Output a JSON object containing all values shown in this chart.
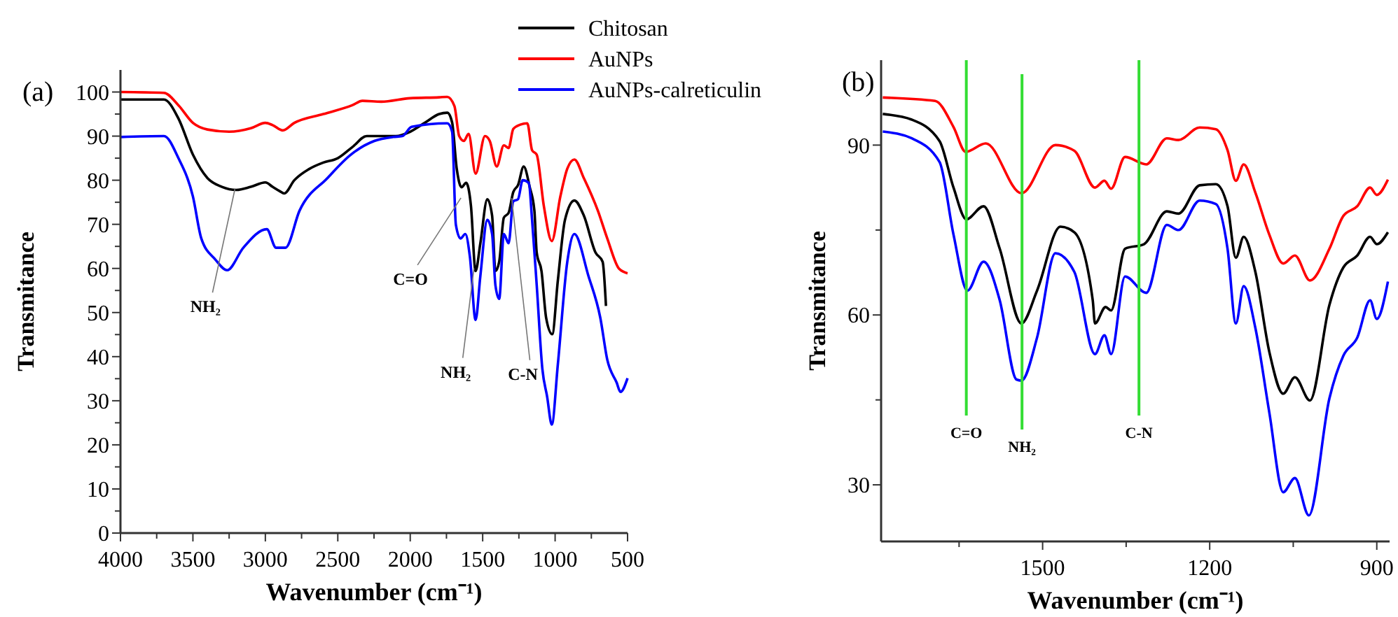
{
  "chart_data": [
    {
      "type": "line",
      "title": "(a)",
      "xlabel": "Wavenumber (cm⁻¹)",
      "ylabel": "Transmitance",
      "legend": "top right",
      "grid": false,
      "xlim": [
        4000,
        500
      ],
      "ylim": [
        0,
        105
      ],
      "xticks": [
        4000,
        {
          "value": 3750,
          "label": null
        },
        3500,
        {
          "value": 3250,
          "label": null
        },
        3000,
        {
          "value": 2750,
          "label": null
        },
        2500,
        {
          "value": 2250,
          "label": null
        },
        2000,
        {
          "value": 1750,
          "label": null
        },
        1500,
        {
          "value": 1250,
          "label": null
        },
        1000,
        {
          "value": 750,
          "label": null
        },
        500
      ],
      "yticks": [
        0,
        {
          "value": 5,
          "label": null
        },
        10,
        {
          "value": 15,
          "label": null
        },
        20,
        {
          "value": 25,
          "label": null
        },
        30,
        {
          "value": 35,
          "label": null
        },
        40,
        {
          "value": 45,
          "label": null
        },
        50,
        {
          "value": 55,
          "label": null
        },
        60,
        {
          "value": 65,
          "label": null
        },
        70,
        {
          "value": 75,
          "label": null
        },
        80,
        {
          "value": 85,
          "label": null
        },
        90,
        {
          "value": 95,
          "label": null
        },
        100
      ],
      "series": [
        {
          "name": "Chitosan",
          "color": "#000000",
          "x": [
            4000,
            3700,
            3600,
            3500,
            3400,
            3300,
            3200,
            3100,
            3000,
            2950,
            2900,
            2870,
            2800,
            2700,
            2600,
            2500,
            2400,
            2300,
            2100,
            2000,
            1900,
            1800,
            1744,
            1711,
            1679,
            1646,
            1614,
            1581,
            1549,
            1516,
            1468,
            1435,
            1412,
            1386,
            1354,
            1321,
            1289,
            1256,
            1217,
            1175,
            1143,
            1127,
            1094,
            1062,
            1020,
            981,
            932,
            867,
            802,
            721,
            672,
            649
          ],
          "values": [
            98.3,
            98.3,
            94,
            85.8,
            80.5,
            78.5,
            77.8,
            78.5,
            79.5,
            78.5,
            77.5,
            77,
            80,
            82.5,
            84,
            85,
            87.5,
            90,
            90,
            91,
            93,
            95,
            95.3,
            93.1,
            82.6,
            78.4,
            79.4,
            74.2,
            59.4,
            65.7,
            75.7,
            72,
            59.4,
            61.5,
            71.5,
            72.6,
            77.3,
            78.9,
            83.1,
            78.4,
            73.1,
            63.6,
            59.4,
            48.8,
            45.1,
            57.3,
            71,
            75.4,
            72,
            63.6,
            61.5,
            51.5
          ]
        },
        {
          "name": "AuNPs",
          "color": "#ff0000",
          "x": [
            4000,
            3700,
            3600,
            3500,
            3400,
            3250,
            3100,
            3000,
            2950,
            2880,
            2800,
            2600,
            2400,
            2330,
            2200,
            2000,
            1800,
            1744,
            1695,
            1662,
            1630,
            1597,
            1549,
            1484,
            1451,
            1403,
            1354,
            1321,
            1289,
            1240,
            1192,
            1159,
            1127,
            1078,
            1023,
            964,
            916,
            867,
            802,
            705,
            640,
            558,
            500
          ],
          "values": [
            100,
            99.8,
            97,
            93,
            91.5,
            91,
            91.8,
            93,
            92.5,
            91.3,
            93,
            95,
            97,
            98,
            97.8,
            98.6,
            98.8,
            98.9,
            96.8,
            90,
            88.9,
            90.5,
            81.5,
            90,
            88.9,
            83.1,
            87.9,
            87.3,
            91.6,
            92.6,
            92.9,
            86.8,
            85.8,
            74.2,
            66.2,
            76.3,
            82.6,
            84.7,
            80.5,
            73.1,
            66.8,
            59.9,
            58.9
          ]
        },
        {
          "name": "AuNPs-calreticulin",
          "color": "#0000ff",
          "x": [
            4000,
            3700,
            3600,
            3500,
            3442,
            3345,
            3264,
            3152,
            2990,
            2926,
            2861,
            2764,
            2571,
            2410,
            2248,
            2119,
            2055,
            1990,
            1744,
            1711,
            1685,
            1653,
            1620,
            1588,
            1549,
            1516,
            1468,
            1435,
            1412,
            1386,
            1354,
            1321,
            1289,
            1256,
            1224,
            1182,
            1159,
            1127,
            1088,
            1055,
            1023,
            981,
            916,
            867,
            770,
            688,
            640,
            575,
            549,
            500
          ],
          "values": [
            89.8,
            90,
            85,
            76.3,
            66.8,
            62,
            59.6,
            64.7,
            68.9,
            64.7,
            64.7,
            73.1,
            80.5,
            85.8,
            88.9,
            89.8,
            90,
            92.1,
            92.9,
            91,
            69.9,
            66.8,
            67.8,
            62.6,
            48.3,
            58.3,
            71,
            67.8,
            56.2,
            53.1,
            67.8,
            65.7,
            75.2,
            75.7,
            80,
            79.4,
            71,
            56.2,
            37.2,
            30.9,
            24.6,
            38.3,
            61.5,
            67.8,
            58.3,
            48.8,
            39.3,
            34.1,
            32,
            35.1
          ]
        }
      ],
      "annotations": [
        {
          "text": "NH₂",
          "x": 3210,
          "y": 78
        },
        {
          "text": "C=O",
          "x": 1650,
          "y": 76
        },
        {
          "text": "NH₂",
          "x": 1560,
          "y": 60
        },
        {
          "text": "C-N",
          "x": 1300,
          "y": 76
        }
      ]
    },
    {
      "type": "line",
      "title": "(b)",
      "xlabel": "Wavenumber (cm⁻¹)",
      "ylabel": "Transmitance",
      "legend": false,
      "grid": false,
      "xlim": [
        1790,
        877
      ],
      "ylim": [
        20,
        105
      ],
      "xticks": [
        {
          "value": 1650,
          "label": null
        },
        1500,
        {
          "value": 1350,
          "label": null
        },
        1200,
        {
          "value": 1050,
          "label": null
        },
        900
      ],
      "yticks": [
        30,
        {
          "value": 45,
          "label": null
        },
        60,
        {
          "value": 75,
          "label": null
        },
        90
      ],
      "series": [
        {
          "color": "#000000",
          "x": [
            1787,
            1735,
            1685,
            1660,
            1637,
            1606,
            1577,
            1538,
            1510,
            1468,
            1443,
            1410,
            1406,
            1387,
            1377,
            1352,
            1318,
            1277,
            1256,
            1218,
            1189,
            1168,
            1153,
            1139,
            1118,
            1093,
            1068,
            1047,
            1020,
            985,
            960,
            935,
            912,
            900,
            880
          ],
          "values": [
            95.5,
            94.5,
            90.7,
            82.5,
            76.9,
            79.2,
            71.7,
            58.5,
            64.3,
            75.6,
            74.6,
            62.6,
            58.5,
            61.4,
            60.8,
            71.7,
            72.5,
            78.3,
            77.9,
            82.9,
            83.1,
            79.2,
            70.1,
            73.8,
            67.6,
            53.5,
            46.1,
            49,
            44.9,
            61.8,
            68.4,
            70.5,
            73.8,
            72.5,
            74.6
          ]
        },
        {
          "color": "#ff0000",
          "x": [
            1787,
            1693,
            1660,
            1638,
            1602,
            1538,
            1477,
            1443,
            1406,
            1389,
            1377,
            1352,
            1314,
            1277,
            1256,
            1218,
            1189,
            1168,
            1153,
            1139,
            1118,
            1093,
            1068,
            1047,
            1020,
            985,
            960,
            935,
            912,
            900,
            880
          ],
          "values": [
            98.4,
            97.8,
            93.2,
            88.8,
            90.3,
            81.5,
            90,
            89,
            82.5,
            83.7,
            82.3,
            87.9,
            86.6,
            91.2,
            90.9,
            93.1,
            92.8,
            89.1,
            83.7,
            86.6,
            81.6,
            74.2,
            69.1,
            70.5,
            66.1,
            71.7,
            77.5,
            79.2,
            82.5,
            81.2,
            83.9
          ]
        },
        {
          "color": "#0000ff",
          "x": [
            1787,
            1735,
            1685,
            1660,
            1635,
            1606,
            1577,
            1547,
            1538,
            1510,
            1477,
            1443,
            1406,
            1389,
            1377,
            1352,
            1314,
            1277,
            1256,
            1218,
            1189,
            1168,
            1153,
            1139,
            1118,
            1093,
            1068,
            1047,
            1022,
            985,
            960,
            935,
            912,
            900,
            880
          ],
          "values": [
            92.4,
            91.2,
            87,
            74.2,
            64.3,
            69.4,
            62.6,
            48.6,
            48.4,
            56,
            70.9,
            67.6,
            53.1,
            56.4,
            53.1,
            66.8,
            63.9,
            75.9,
            75,
            80.2,
            79.6,
            71.7,
            58.5,
            65.1,
            57.7,
            42.8,
            28.7,
            31.2,
            24.6,
            45.3,
            52.8,
            56,
            62.6,
            59.3,
            65.9
          ]
        }
      ],
      "ref_lines": [
        {
          "axis": "x",
          "value": 1637,
          "label": "C=O",
          "color": "#33dd33"
        },
        {
          "axis": "x",
          "value": 1537,
          "label": "NH₂",
          "color": "#33dd33"
        },
        {
          "axis": "x",
          "value": 1327,
          "label": "C-N",
          "color": "#33dd33"
        }
      ]
    }
  ]
}
